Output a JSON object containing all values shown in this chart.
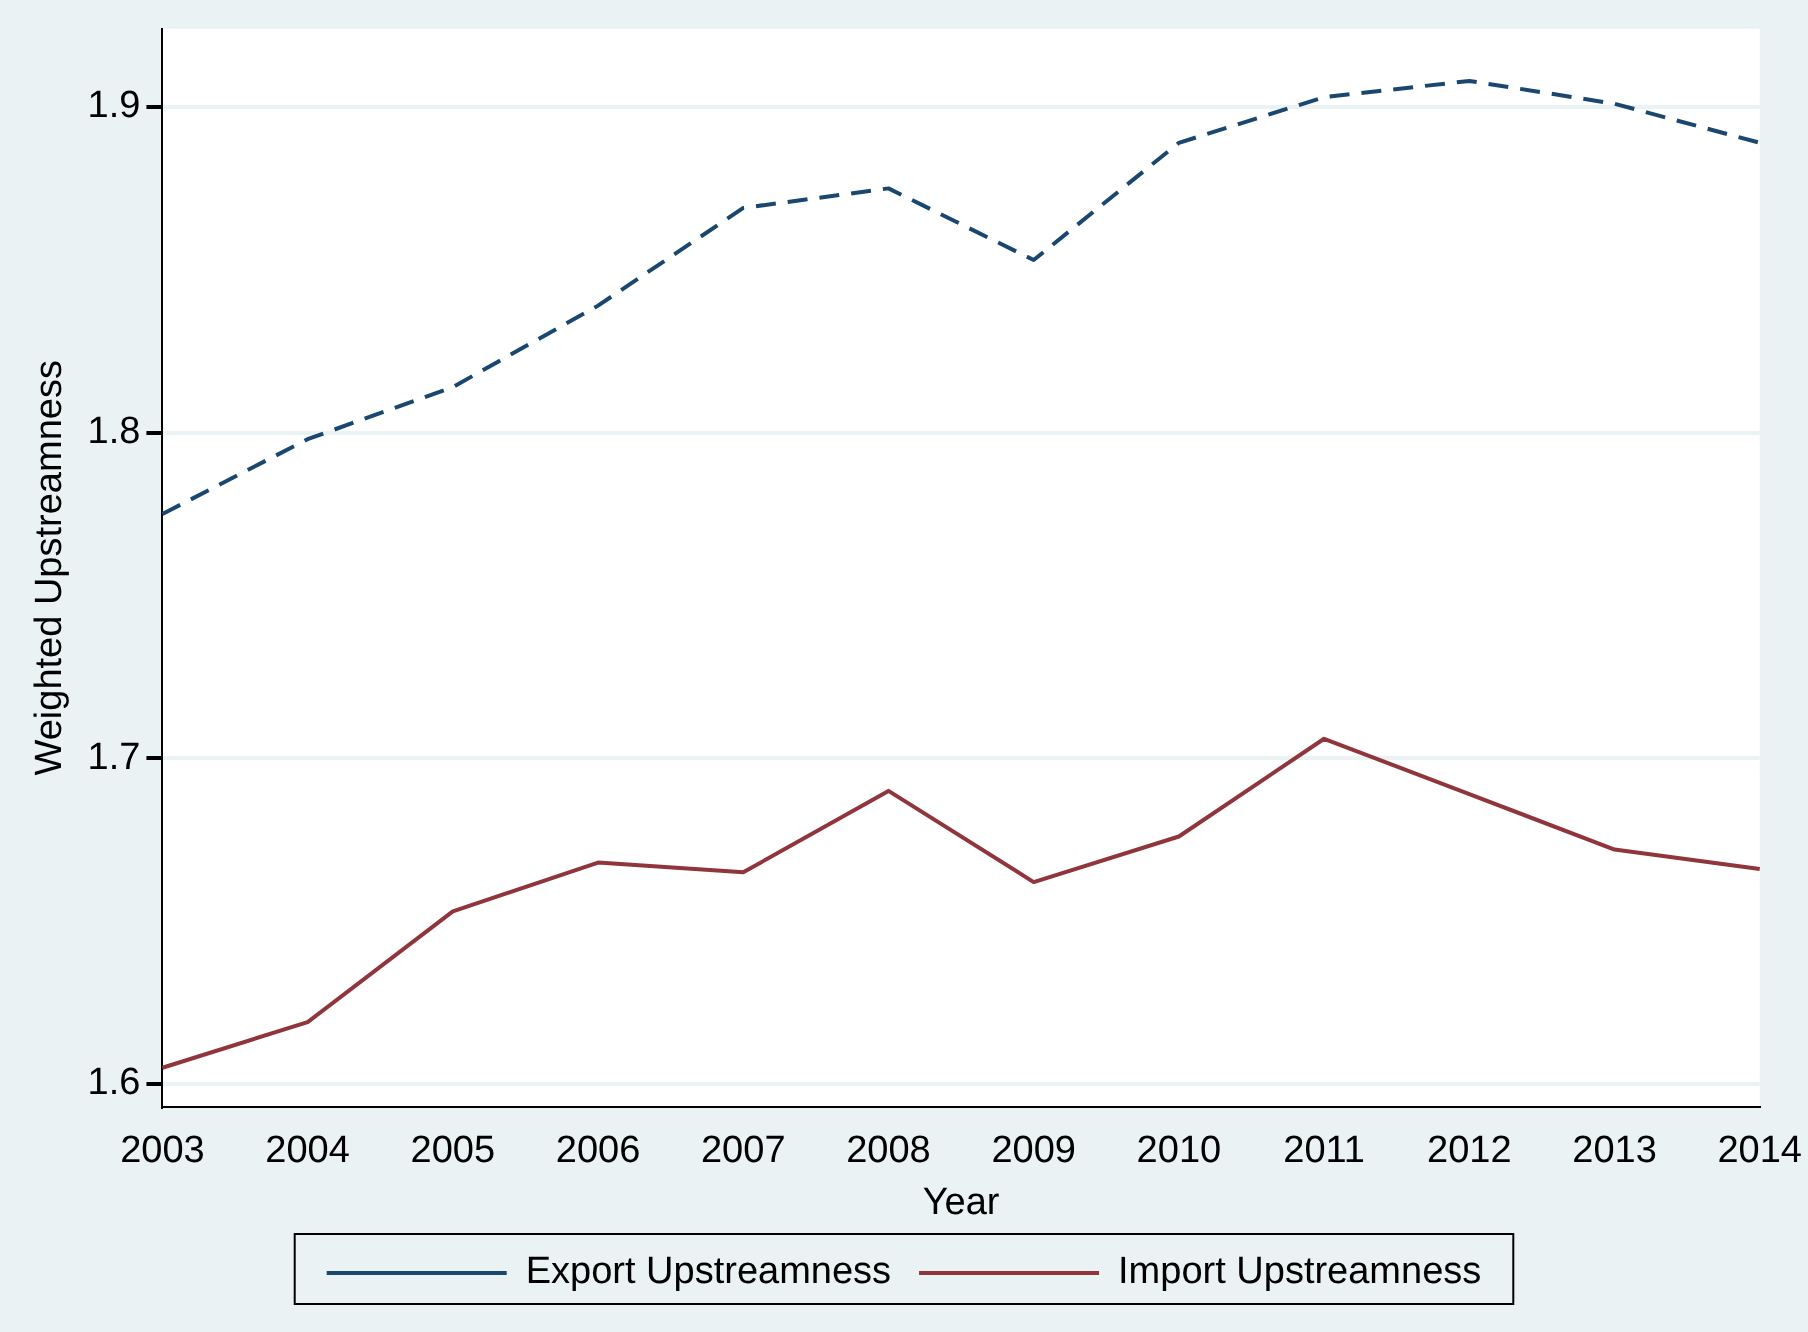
{
  "chart_data": {
    "type": "line",
    "xlabel": "Year",
    "ylabel": "Weighted Upstreamness",
    "categories": [
      "2003",
      "2004",
      "2005",
      "2006",
      "2007",
      "2008",
      "2009",
      "2010",
      "2011",
      "2012",
      "2013",
      "2014"
    ],
    "series": [
      {
        "name": "Export Upstreamness",
        "color": "#1a476f",
        "line_style": "dashed",
        "values": [
          1.775,
          1.798,
          1.814,
          1.839,
          1.869,
          1.875,
          1.853,
          1.889,
          1.903,
          1.908,
          1.901,
          1.889
        ]
      },
      {
        "name": "Import Upstreamness",
        "color": "#90353b",
        "line_style": "solid",
        "values": [
          1.605,
          1.619,
          1.653,
          1.668,
          1.665,
          1.69,
          1.662,
          1.676,
          1.706,
          1.689,
          1.672,
          1.666
        ]
      }
    ],
    "ylim": [
      1.593,
      1.924
    ],
    "yticks": [
      1.6,
      1.7,
      1.8,
      1.9
    ],
    "grid": "y",
    "legend": "bottom",
    "marker": "none"
  }
}
